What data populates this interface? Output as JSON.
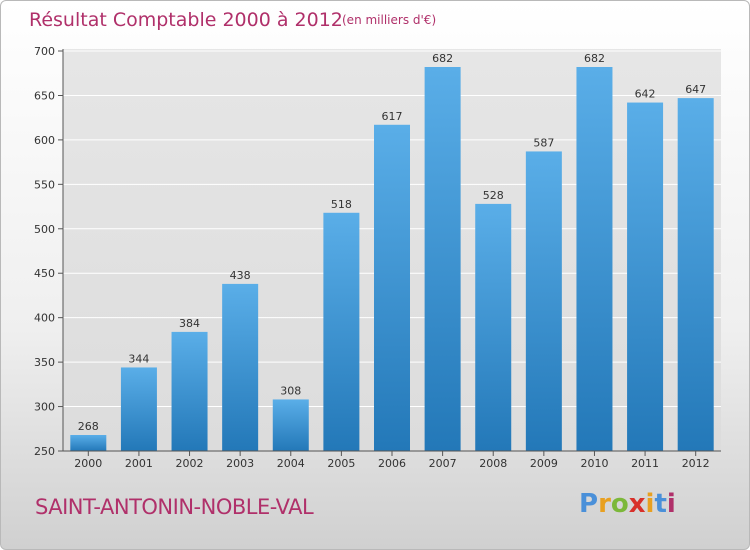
{
  "header": {
    "title": "Résultat Comptable 2000 à 2012",
    "subtitle": "(en milliers d'€)"
  },
  "footer": {
    "town": "SAINT-ANTONIN-NOBLE-VAL",
    "logo_text": "Proxiti"
  },
  "colors": {
    "bar_top": "#5aaee8",
    "bar_bottom": "#2378b8",
    "title": "#b0306a",
    "logo": [
      "#4a90d9",
      "#e8a020",
      "#7cb83a",
      "#d8302a",
      "#e8a020",
      "#4a90d9",
      "#b0306a"
    ]
  },
  "chart_data": {
    "type": "bar",
    "categories": [
      "2000",
      "2001",
      "2002",
      "2003",
      "2004",
      "2005",
      "2006",
      "2007",
      "2008",
      "2009",
      "2010",
      "2011",
      "2012"
    ],
    "values": [
      268,
      344,
      384,
      438,
      308,
      518,
      617,
      682,
      528,
      587,
      682,
      642,
      647
    ],
    "ylim": [
      250,
      700
    ],
    "yticks": [
      250,
      300,
      350,
      400,
      450,
      500,
      550,
      600,
      650,
      700
    ],
    "grid": true
  }
}
